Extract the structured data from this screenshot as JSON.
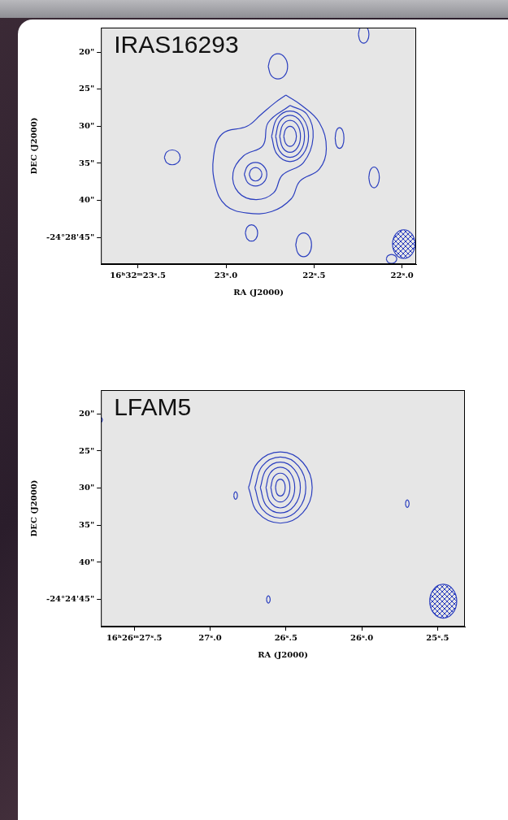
{
  "chart_data": [
    {
      "type": "contour",
      "title": "IRAS16293",
      "x_label": "RA (J2000)",
      "y_label": "DEC (J2000)",
      "xlim": [
        23.71,
        21.92
      ],
      "ylim": [
        48.6,
        16.7
      ],
      "xticks": [
        {
          "value": 23.5,
          "label": "16ʰ32ᵐ23ˢ.5"
        },
        {
          "value": 23.0,
          "label": "23ˢ.0"
        },
        {
          "value": 22.5,
          "label": "22ˢ.5"
        },
        {
          "value": 22.0,
          "label": "22ˢ.0"
        }
      ],
      "yticks": [
        {
          "value": 20,
          "label": "20\""
        },
        {
          "value": 25,
          "label": "25\""
        },
        {
          "value": 30,
          "label": "30\""
        },
        {
          "value": 35,
          "label": "35\""
        },
        {
          "value": 40,
          "label": "40\""
        },
        {
          "value": 45,
          "label": "-24°28'45\""
        }
      ],
      "grid": false,
      "color": "#2b3fbf",
      "contours": [
        [
          [
            22.672,
            31.36
          ],
          [
            22.661,
            32.32
          ],
          [
            22.636,
            32.72
          ],
          [
            22.611,
            32.32
          ],
          [
            22.6,
            31.36
          ],
          [
            22.611,
            30.4
          ],
          [
            22.636,
            30.0
          ],
          [
            22.661,
            30.4
          ],
          [
            22.672,
            31.36
          ]
        ],
        [
          [
            22.695,
            31.36
          ],
          [
            22.678,
            32.89
          ],
          [
            22.636,
            33.52
          ],
          [
            22.594,
            32.89
          ],
          [
            22.577,
            31.36
          ],
          [
            22.594,
            29.83
          ],
          [
            22.636,
            29.2
          ],
          [
            22.678,
            29.83
          ],
          [
            22.695,
            31.36
          ]
        ],
        [
          [
            22.718,
            31.36
          ],
          [
            22.694,
            33.37
          ],
          [
            22.636,
            34.2
          ],
          [
            22.578,
            33.37
          ],
          [
            22.554,
            31.36
          ],
          [
            22.578,
            29.35
          ],
          [
            22.636,
            28.52
          ],
          [
            22.694,
            29.35
          ],
          [
            22.718,
            31.36
          ]
        ],
        [
          [
            22.741,
            31.36
          ],
          [
            22.71,
            33.77
          ],
          [
            22.636,
            34.77
          ],
          [
            22.562,
            33.77
          ],
          [
            22.531,
            31.36
          ],
          [
            22.562,
            28.95
          ],
          [
            22.636,
            27.95
          ],
          [
            22.71,
            28.95
          ],
          [
            22.741,
            31.36
          ]
        ],
        [
          [
            22.868,
            36.48
          ],
          [
            22.857,
            37.12
          ],
          [
            22.832,
            37.39
          ],
          [
            22.807,
            37.12
          ],
          [
            22.796,
            36.48
          ],
          [
            22.807,
            35.84
          ],
          [
            22.832,
            35.57
          ],
          [
            22.857,
            35.84
          ],
          [
            22.868,
            36.48
          ]
        ],
        [
          [
            22.896,
            36.48
          ],
          [
            22.877,
            37.6
          ],
          [
            22.832,
            38.07
          ],
          [
            22.787,
            37.6
          ],
          [
            22.768,
            36.48
          ],
          [
            22.787,
            35.36
          ],
          [
            22.832,
            34.89
          ],
          [
            22.877,
            35.36
          ],
          [
            22.896,
            36.48
          ]
        ],
        [
          [
            22.636,
            27.2
          ],
          [
            22.54,
            28.4
          ],
          [
            22.505,
            31.5
          ],
          [
            22.56,
            34.9
          ],
          [
            22.68,
            36.6
          ],
          [
            22.73,
            39.0
          ],
          [
            22.83,
            39.9
          ],
          [
            22.93,
            38.9
          ],
          [
            22.96,
            36.3
          ],
          [
            22.9,
            34.0
          ],
          [
            22.79,
            32.6
          ],
          [
            22.76,
            29.5
          ],
          [
            22.636,
            27.2
          ]
        ],
        [
          [
            22.66,
            25.8
          ],
          [
            22.57,
            27.2
          ],
          [
            22.47,
            29.5
          ],
          [
            22.43,
            33.0
          ],
          [
            22.47,
            35.8
          ],
          [
            22.58,
            37.4
          ],
          [
            22.63,
            39.8
          ],
          [
            22.74,
            41.5
          ],
          [
            22.88,
            41.7
          ],
          [
            23.0,
            40.7
          ],
          [
            23.06,
            38.0
          ],
          [
            23.07,
            34.0
          ],
          [
            23.02,
            31.0
          ],
          [
            22.88,
            30.0
          ],
          [
            22.8,
            28.4
          ],
          [
            22.72,
            26.8
          ],
          [
            22.66,
            25.8
          ]
        ],
        [
          [
            22.76,
            21.93
          ],
          [
            22.744,
            23.13
          ],
          [
            22.705,
            23.63
          ],
          [
            22.666,
            23.13
          ],
          [
            22.65,
            21.93
          ],
          [
            22.666,
            20.73
          ],
          [
            22.705,
            20.23
          ],
          [
            22.744,
            20.73
          ],
          [
            22.76,
            21.93
          ]
        ],
        [
          [
            22.248,
            17.6
          ],
          [
            22.239,
            18.45
          ],
          [
            22.218,
            18.8
          ],
          [
            22.197,
            18.45
          ],
          [
            22.188,
            17.6
          ],
          [
            22.197,
            16.75
          ],
          [
            22.218,
            16.4
          ],
          [
            22.239,
            16.75
          ],
          [
            22.248,
            17.6
          ]
        ],
        [
          [
            23.35,
            34.2
          ],
          [
            23.337,
            34.91
          ],
          [
            23.305,
            35.2
          ],
          [
            23.273,
            34.91
          ],
          [
            23.26,
            34.2
          ],
          [
            23.273,
            33.49
          ],
          [
            23.305,
            33.2
          ],
          [
            23.337,
            33.49
          ],
          [
            23.35,
            34.2
          ]
        ],
        [
          [
            22.38,
            31.6
          ],
          [
            22.373,
            32.59
          ],
          [
            22.355,
            33.0
          ],
          [
            22.337,
            32.59
          ],
          [
            22.33,
            31.6
          ],
          [
            22.337,
            30.61
          ],
          [
            22.355,
            30.2
          ],
          [
            22.373,
            30.61
          ],
          [
            22.38,
            31.6
          ]
        ],
        [
          [
            22.189,
            36.9
          ],
          [
            22.18,
            37.89
          ],
          [
            22.159,
            38.3
          ],
          [
            22.138,
            37.89
          ],
          [
            22.129,
            36.9
          ],
          [
            22.138,
            35.91
          ],
          [
            22.159,
            35.5
          ],
          [
            22.18,
            35.91
          ],
          [
            22.189,
            36.9
          ]
        ],
        [
          [
            22.89,
            44.4
          ],
          [
            22.88,
            45.18
          ],
          [
            22.855,
            45.5
          ],
          [
            22.83,
            45.18
          ],
          [
            22.82,
            44.4
          ],
          [
            22.83,
            43.62
          ],
          [
            22.855,
            43.3
          ],
          [
            22.88,
            43.62
          ],
          [
            22.89,
            44.4
          ]
        ],
        [
          [
            22.604,
            46.0
          ],
          [
            22.591,
            47.13
          ],
          [
            22.559,
            47.6
          ],
          [
            22.527,
            47.13
          ],
          [
            22.514,
            46.0
          ],
          [
            22.527,
            44.87
          ],
          [
            22.559,
            44.4
          ],
          [
            22.591,
            44.87
          ],
          [
            22.604,
            46.0
          ]
        ],
        [
          [
            22.09,
            47.9
          ],
          [
            22.081,
            48.32
          ],
          [
            22.06,
            48.5
          ],
          [
            22.039,
            48.32
          ],
          [
            22.03,
            47.9
          ],
          [
            22.039,
            47.48
          ],
          [
            22.06,
            47.3
          ],
          [
            22.081,
            47.48
          ],
          [
            22.09,
            47.9
          ]
        ]
      ],
      "beam": {
        "center": [
          21.99,
          45.9
        ],
        "half_width": [
          0.064,
          1.93
        ]
      }
    },
    {
      "type": "contour",
      "title": "LFAM5",
      "x_label": "RA (J2000)",
      "y_label": "DEC (J2000)",
      "xlim": [
        27.72,
        25.32
      ],
      "ylim": [
        48.65,
        16.8
      ],
      "xticks": [
        {
          "value": 27.5,
          "label": "16ʰ26ᵐ27ˢ.5"
        },
        {
          "value": 27.0,
          "label": "27ˢ.0"
        },
        {
          "value": 26.5,
          "label": "26ˢ.5"
        },
        {
          "value": 26.0,
          "label": "26ˢ.0"
        },
        {
          "value": 25.5,
          "label": "25ˢ.5"
        }
      ],
      "yticks": [
        {
          "value": 20,
          "label": "20\""
        },
        {
          "value": 25,
          "label": "25\""
        },
        {
          "value": 30,
          "label": "30\""
        },
        {
          "value": 35,
          "label": "35\""
        },
        {
          "value": 40,
          "label": "40\""
        },
        {
          "value": 45,
          "label": "-24°24'45\""
        }
      ],
      "grid": false,
      "color": "#2b3fbf",
      "contours": [
        [
          [
            26.569,
            29.93
          ],
          [
            26.56,
            30.74
          ],
          [
            26.537,
            31.07
          ],
          [
            26.514,
            30.74
          ],
          [
            26.505,
            29.93
          ],
          [
            26.514,
            29.12
          ],
          [
            26.537,
            28.79
          ],
          [
            26.56,
            29.12
          ],
          [
            26.569,
            29.93
          ]
        ],
        [
          [
            26.6,
            29.93
          ],
          [
            26.582,
            31.3
          ],
          [
            26.537,
            31.87
          ],
          [
            26.492,
            31.3
          ],
          [
            26.474,
            29.93
          ],
          [
            26.492,
            28.56
          ],
          [
            26.537,
            27.99
          ],
          [
            26.582,
            28.56
          ],
          [
            26.6,
            29.93
          ]
        ],
        [
          [
            26.632,
            29.93
          ],
          [
            26.604,
            31.87
          ],
          [
            26.537,
            32.67
          ],
          [
            26.47,
            31.87
          ],
          [
            26.442,
            29.93
          ],
          [
            26.47,
            27.99
          ],
          [
            26.537,
            27.19
          ],
          [
            26.604,
            27.99
          ],
          [
            26.632,
            29.93
          ]
        ],
        [
          [
            26.669,
            29.93
          ],
          [
            26.63,
            32.35
          ],
          [
            26.537,
            33.35
          ],
          [
            26.444,
            32.35
          ],
          [
            26.405,
            29.93
          ],
          [
            26.444,
            27.51
          ],
          [
            26.537,
            26.51
          ],
          [
            26.63,
            27.51
          ],
          [
            26.669,
            29.93
          ]
        ],
        [
          [
            26.705,
            29.93
          ],
          [
            26.656,
            32.84
          ],
          [
            26.537,
            34.04
          ],
          [
            26.418,
            32.84
          ],
          [
            26.369,
            29.93
          ],
          [
            26.418,
            27.02
          ],
          [
            26.537,
            25.82
          ],
          [
            26.656,
            27.02
          ],
          [
            26.705,
            29.93
          ]
        ],
        [
          [
            26.747,
            29.93
          ],
          [
            26.685,
            33.32
          ],
          [
            26.537,
            34.72
          ],
          [
            26.389,
            33.32
          ],
          [
            26.327,
            29.93
          ],
          [
            26.389,
            26.54
          ],
          [
            26.537,
            25.14
          ],
          [
            26.685,
            26.54
          ],
          [
            26.747,
            29.93
          ]
        ],
        [
          [
            26.844,
            31.0
          ],
          [
            26.84,
            31.35
          ],
          [
            26.832,
            31.5
          ],
          [
            26.824,
            31.35
          ],
          [
            26.82,
            31.0
          ],
          [
            26.824,
            30.65
          ],
          [
            26.832,
            30.5
          ],
          [
            26.84,
            30.65
          ],
          [
            26.844,
            31.0
          ]
        ],
        [
          [
            25.712,
            32.1
          ],
          [
            25.708,
            32.45
          ],
          [
            25.7,
            32.6
          ],
          [
            25.692,
            32.45
          ],
          [
            25.688,
            32.1
          ],
          [
            25.692,
            31.75
          ],
          [
            25.7,
            31.6
          ],
          [
            25.708,
            31.75
          ],
          [
            25.712,
            32.1
          ]
        ],
        [
          [
            26.628,
            45.0
          ],
          [
            26.624,
            45.35
          ],
          [
            26.616,
            45.5
          ],
          [
            26.608,
            45.35
          ],
          [
            26.604,
            45.0
          ],
          [
            26.608,
            44.65
          ],
          [
            26.616,
            44.5
          ],
          [
            26.624,
            44.65
          ],
          [
            26.628,
            45.0
          ]
        ],
        [
          [
            27.81,
            20.8
          ],
          [
            27.795,
            21.22
          ],
          [
            27.76,
            21.4
          ],
          [
            27.725,
            21.22
          ],
          [
            27.71,
            20.8
          ],
          [
            27.725,
            20.38
          ],
          [
            27.76,
            20.2
          ],
          [
            27.795,
            20.38
          ],
          [
            27.81,
            20.8
          ]
        ]
      ],
      "beam": {
        "center": [
          25.463,
          45.23
        ],
        "half_width": [
          0.089,
          2.28
        ]
      }
    }
  ]
}
